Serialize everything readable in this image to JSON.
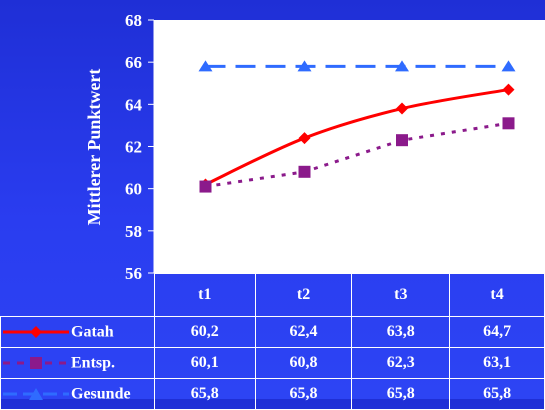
{
  "chart_data": {
    "type": "line",
    "ylabel": "Mittlerer Punktwert",
    "ylim": [
      56,
      68
    ],
    "yticks": [
      56,
      58,
      60,
      62,
      64,
      66,
      68
    ],
    "categories": [
      "t1",
      "t2",
      "t3",
      "t4"
    ],
    "grid": false,
    "series": [
      {
        "name": "Gatah",
        "values": [
          60.2,
          62.4,
          63.8,
          64.7
        ],
        "color": "#ff0000",
        "style": "solid",
        "marker": "diamond",
        "labels": [
          "60,2",
          "62,4",
          "63,8",
          "64,7"
        ]
      },
      {
        "name": "Entsp.",
        "values": [
          60.1,
          60.8,
          62.3,
          63.1
        ],
        "color": "#8b1a8b",
        "style": "dotted",
        "marker": "square",
        "labels": [
          "60,1",
          "60,8",
          "62,3",
          "63,1"
        ]
      },
      {
        "name": "Gesunde",
        "values": [
          65.8,
          65.8,
          65.8,
          65.8
        ],
        "color": "#2f6bff",
        "style": "dashed",
        "marker": "triangle",
        "labels": [
          "65,8",
          "65,8",
          "65,8",
          "65,8"
        ]
      }
    ]
  }
}
